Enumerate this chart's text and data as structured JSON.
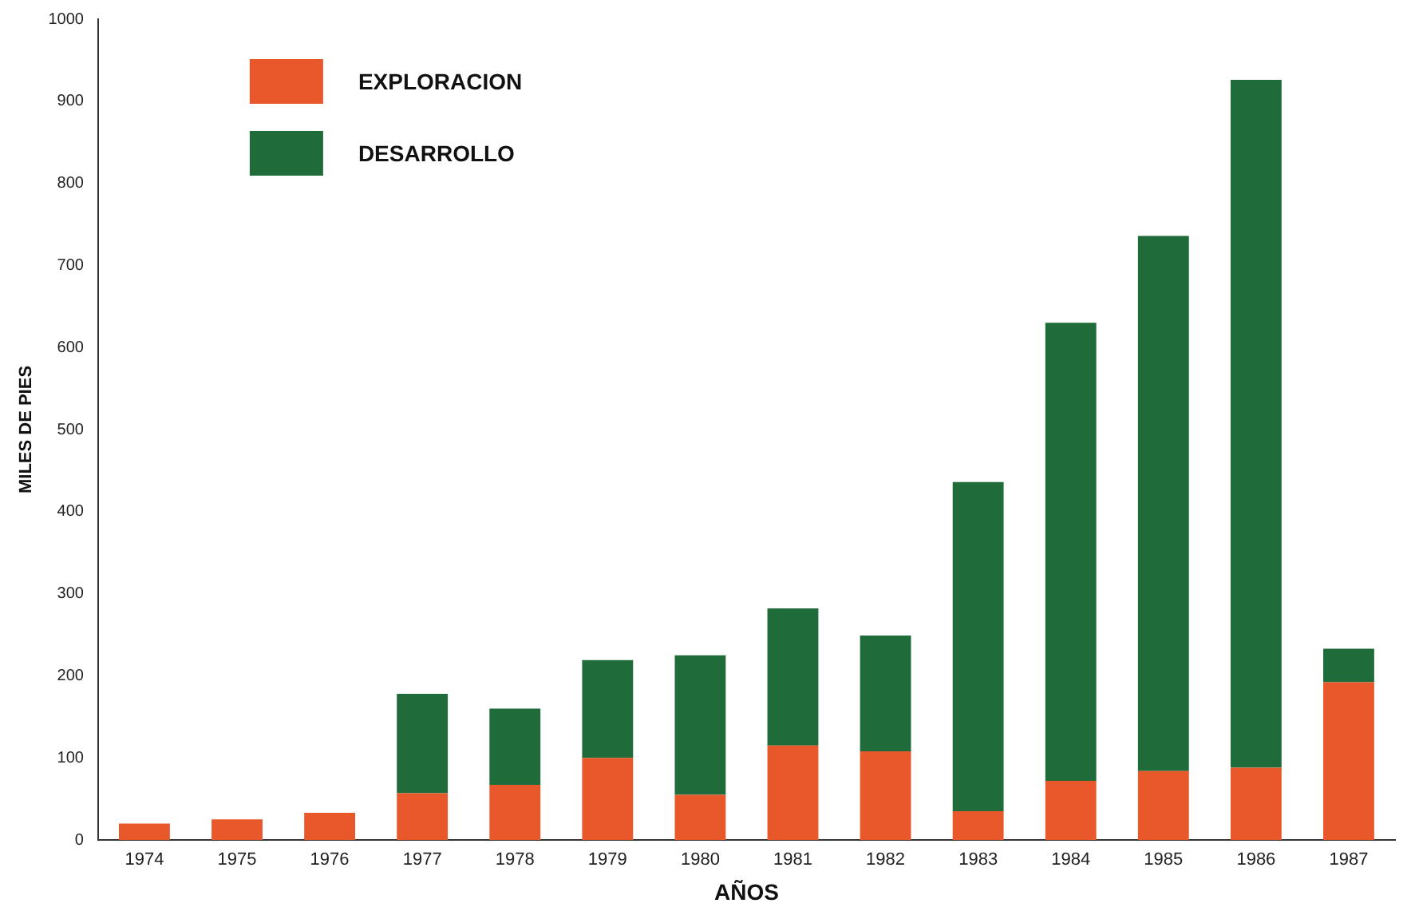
{
  "chart_data": {
    "type": "bar",
    "stacked": true,
    "xlabel": "AÑOS",
    "ylabel": "MILES DE PIES",
    "categories": [
      "1974",
      "1975",
      "1976",
      "1977",
      "1978",
      "1979",
      "1980",
      "1981",
      "1982",
      "1983",
      "1984",
      "1985",
      "1986",
      "1987"
    ],
    "series": [
      {
        "name": "EXPLORACION",
        "color": "#e8582a",
        "values": [
          20,
          25,
          33,
          57,
          67,
          100,
          55,
          115,
          108,
          35,
          72,
          84,
          88,
          192
        ]
      },
      {
        "name": "DESARROLLO",
        "color": "#1f6b3a",
        "values": [
          null,
          null,
          null,
          121,
          93,
          119,
          170,
          167,
          141,
          401,
          558,
          652,
          838,
          41
        ]
      }
    ],
    "ylim": [
      0,
      1000
    ],
    "yticks": [
      0,
      100,
      200,
      300,
      400,
      500,
      600,
      700,
      800,
      900,
      1000
    ],
    "grid": false,
    "legend": "top left"
  }
}
